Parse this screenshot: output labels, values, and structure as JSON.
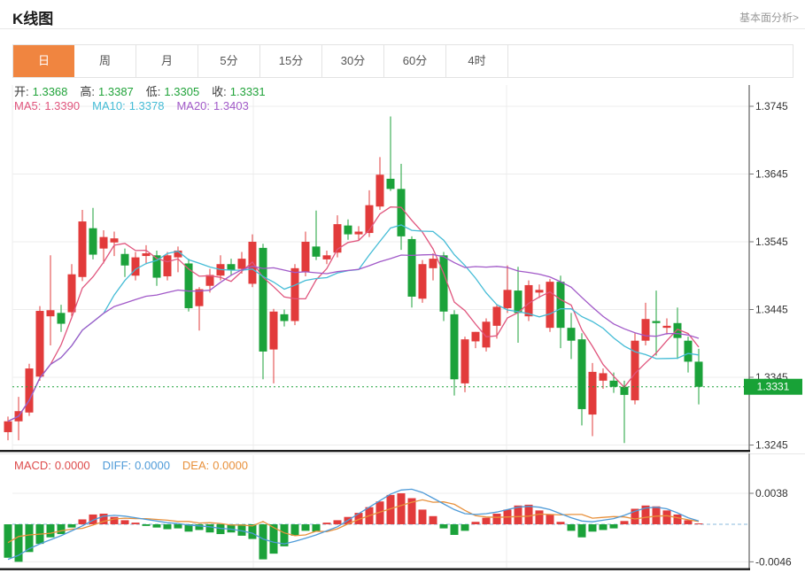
{
  "header": {
    "title": "K线图",
    "link": "基本面分析>"
  },
  "tabs": {
    "items": [
      "日",
      "周",
      "月",
      "5分",
      "15分",
      "30分",
      "60分",
      "4时"
    ],
    "selected": "日",
    "selected_index": 0
  },
  "legend": {
    "ohlc_value_color": "#21a33a",
    "ohlc": [
      {
        "label": "开:",
        "value": "1.3368"
      },
      {
        "label": "高:",
        "value": "1.3387"
      },
      {
        "label": "低:",
        "value": "1.3305"
      },
      {
        "label": "收:",
        "value": "1.3331"
      }
    ],
    "ma": [
      {
        "label": "MA5:",
        "value": "1.3390",
        "color": "#e0557d"
      },
      {
        "label": "MA10:",
        "value": "1.3378",
        "color": "#45bcd6"
      },
      {
        "label": "MA20:",
        "value": "1.3403",
        "color": "#a159c8"
      }
    ],
    "macd": [
      {
        "label": "MACD:",
        "value": "0.0000",
        "color": "#dd4b4b"
      },
      {
        "label": "DIFF:",
        "value": "0.0000",
        "color": "#4f9bd8"
      },
      {
        "label": "DEA:",
        "value": "0.0000",
        "color": "#e8913c"
      }
    ]
  },
  "colors": {
    "up": "#e23b3b",
    "down": "#1ba23a",
    "ma5": "#e0557d",
    "ma10": "#45bcd6",
    "ma20": "#a159c8",
    "diff": "#4f9bd8",
    "dea": "#e8913c",
    "tab_accent": "#f08540",
    "price_tag_bg": "#18a237",
    "current_line": "#1fa23c",
    "grid": "#ececec",
    "axis": "#777777"
  },
  "chart_data": {
    "type": "candlestick",
    "title": "K线图",
    "legend_position": "top-left",
    "grid": true,
    "main": {
      "yticks": [
        "1.3745",
        "1.3645",
        "1.3545",
        "1.3445",
        "1.3345",
        "1.3245"
      ],
      "ylim": [
        1.3235,
        1.3772
      ],
      "current_price": "1.3331",
      "ma_periods": [
        5,
        10,
        20
      ],
      "candles_format": [
        "open",
        "high",
        "low",
        "close"
      ],
      "up_means": "close>=open (red)",
      "candles": [
        [
          1.3264,
          1.3287,
          1.3252,
          1.328
        ],
        [
          1.328,
          1.3316,
          1.3252,
          1.3295
        ],
        [
          1.3293,
          1.3365,
          1.3288,
          1.3358
        ],
        [
          1.3346,
          1.345,
          1.334,
          1.3443
        ],
        [
          1.3435,
          1.3525,
          1.3392,
          1.3444
        ],
        [
          1.344,
          1.3452,
          1.3412,
          1.3424
        ],
        [
          1.3441,
          1.3512,
          1.3435,
          1.3497
        ],
        [
          1.3493,
          1.3592,
          1.3487,
          1.3575
        ],
        [
          1.3565,
          1.3595,
          1.3519,
          1.3526
        ],
        [
          1.3535,
          1.3562,
          1.3513,
          1.3552
        ],
        [
          1.3544,
          1.356,
          1.3524,
          1.355
        ],
        [
          1.3527,
          1.3535,
          1.3493,
          1.351
        ],
        [
          1.3495,
          1.353,
          1.3488,
          1.3522
        ],
        [
          1.3524,
          1.354,
          1.3512,
          1.3528
        ],
        [
          1.3525,
          1.3532,
          1.348,
          1.3492
        ],
        [
          1.3494,
          1.353,
          1.3488,
          1.3525
        ],
        [
          1.3522,
          1.3538,
          1.35,
          1.3532
        ],
        [
          1.3513,
          1.352,
          1.3442,
          1.3447
        ],
        [
          1.345,
          1.3478,
          1.3414,
          1.3475
        ],
        [
          1.348,
          1.3505,
          1.347,
          1.3496
        ],
        [
          1.3495,
          1.3525,
          1.3488,
          1.3512
        ],
        [
          1.3512,
          1.352,
          1.3495,
          1.3503
        ],
        [
          1.3505,
          1.353,
          1.3498,
          1.352
        ],
        [
          1.3483,
          1.3556,
          1.3478,
          1.3545
        ],
        [
          1.3536,
          1.3542,
          1.3342,
          1.3383
        ],
        [
          1.3386,
          1.3446,
          1.3336,
          1.3442
        ],
        [
          1.3438,
          1.3445,
          1.342,
          1.3428
        ],
        [
          1.3428,
          1.3512,
          1.3422,
          1.3506
        ],
        [
          1.35,
          1.356,
          1.3494,
          1.3545
        ],
        [
          1.3538,
          1.3591,
          1.3518,
          1.3523
        ],
        [
          1.3519,
          1.3532,
          1.3512,
          1.3525
        ],
        [
          1.3529,
          1.3584,
          1.3522,
          1.3571
        ],
        [
          1.3569,
          1.3578,
          1.3548,
          1.3556
        ],
        [
          1.3556,
          1.3568,
          1.3548,
          1.356
        ],
        [
          1.3558,
          1.3621,
          1.3552,
          1.3599
        ],
        [
          1.3597,
          1.367,
          1.3592,
          1.3644
        ],
        [
          1.3638,
          1.373,
          1.362,
          1.3623
        ],
        [
          1.3623,
          1.366,
          1.3533,
          1.3553
        ],
        [
          1.3549,
          1.3553,
          1.3448,
          1.3464
        ],
        [
          1.3461,
          1.3518,
          1.3455,
          1.3512
        ],
        [
          1.3506,
          1.3528,
          1.3488,
          1.352
        ],
        [
          1.3525,
          1.353,
          1.3428,
          1.3442
        ],
        [
          1.3438,
          1.3444,
          1.3318,
          1.3342
        ],
        [
          1.3336,
          1.3405,
          1.3323,
          1.3401
        ],
        [
          1.3398,
          1.3412,
          1.3388,
          1.3412
        ],
        [
          1.3389,
          1.3432,
          1.3383,
          1.3427
        ],
        [
          1.3421,
          1.3452,
          1.3402,
          1.3449
        ],
        [
          1.3447,
          1.351,
          1.344,
          1.3474
        ],
        [
          1.3473,
          1.3508,
          1.3396,
          1.344
        ],
        [
          1.3435,
          1.3488,
          1.3428,
          1.3481
        ],
        [
          1.347,
          1.3482,
          1.3462,
          1.3474
        ],
        [
          1.3418,
          1.349,
          1.3412,
          1.3486
        ],
        [
          1.3486,
          1.3495,
          1.3388,
          1.3418
        ],
        [
          1.3418,
          1.344,
          1.3372,
          1.3399
        ],
        [
          1.3401,
          1.341,
          1.3274,
          1.3298
        ],
        [
          1.329,
          1.3366,
          1.3258,
          1.3353
        ],
        [
          1.334,
          1.3358,
          1.3328,
          1.3351
        ],
        [
          1.334,
          1.3352,
          1.3322,
          1.3331
        ],
        [
          1.3331,
          1.334,
          1.3248,
          1.3319
        ],
        [
          1.3311,
          1.341,
          1.3305,
          1.3399
        ],
        [
          1.3399,
          1.3455,
          1.3392,
          1.3431
        ],
        [
          1.3428,
          1.3473,
          1.3377,
          1.3425
        ],
        [
          1.3418,
          1.3432,
          1.3408,
          1.3421
        ],
        [
          1.3425,
          1.3448,
          1.3372,
          1.3403
        ],
        [
          1.3399,
          1.3405,
          1.3352,
          1.3368
        ],
        [
          1.3368,
          1.3387,
          1.3305,
          1.3331
        ]
      ]
    },
    "macd": {
      "yticks": [
        "0.0038",
        "-0.0046"
      ],
      "zero_line": "dashed",
      "hist": [
        -0.0041,
        -0.0046,
        -0.0034,
        -0.0024,
        -0.0016,
        -0.0012,
        -0.0004,
        0.0006,
        0.0012,
        0.0013,
        0.0009,
        0.0005,
        0.0002,
        -0.0002,
        -0.0004,
        -0.0006,
        -0.0005,
        -0.0009,
        -0.0007,
        -0.001,
        -0.0012,
        -0.001,
        -0.0014,
        -0.0018,
        -0.0043,
        -0.0036,
        -0.0027,
        -0.0014,
        -0.0008,
        -0.0009,
        0.0002,
        0.0005,
        0.0009,
        0.0014,
        0.0021,
        0.0028,
        0.0036,
        0.0038,
        0.0032,
        0.0018,
        0.001,
        -0.0005,
        -0.0013,
        -0.0008,
        0.0003,
        0.0008,
        0.0013,
        0.0018,
        0.0023,
        0.0024,
        0.0017,
        0.0012,
        0.0003,
        -0.0008,
        -0.0016,
        -0.0009,
        -0.0007,
        -0.0005,
        0.0004,
        0.0019,
        0.0023,
        0.0022,
        0.0017,
        0.0012,
        0.0005,
        0.0001
      ],
      "diff": [
        -0.0043,
        -0.0038,
        -0.003,
        -0.0024,
        -0.0019,
        -0.0014,
        -0.0008,
        -0.0002,
        0.0005,
        0.001,
        0.0011,
        0.001,
        0.0008,
        0.0006,
        0.0004,
        0.0002,
        0.0001,
        -0.0001,
        -0.0002,
        -0.0003,
        -0.0005,
        -0.0006,
        -0.0008,
        -0.0011,
        -0.0018,
        -0.0022,
        -0.0024,
        -0.0021,
        -0.0017,
        -0.0013,
        -0.0008,
        -0.0003,
        0.0005,
        0.0013,
        0.0021,
        0.0029,
        0.0037,
        0.0042,
        0.0043,
        0.0039,
        0.0032,
        0.0025,
        0.0018,
        0.0013,
        0.0012,
        0.0013,
        0.0015,
        0.0018,
        0.0021,
        0.0022,
        0.0021,
        0.0018,
        0.0013,
        0.0008,
        0.0004,
        0.0003,
        0.0005,
        0.0007,
        0.0011,
        0.0016,
        0.002,
        0.0021,
        0.0019,
        0.0014,
        0.0008,
        0.0004
      ]
    }
  }
}
